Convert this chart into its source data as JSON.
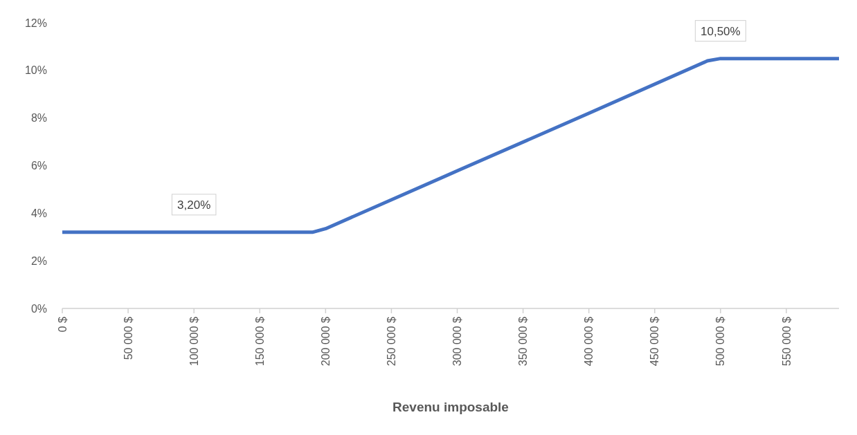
{
  "chart_data": {
    "type": "line",
    "xlabel": "Revenu imposable",
    "x": [
      0,
      190000,
      200000,
      300000,
      400000,
      490000,
      500000,
      590000
    ],
    "series": [
      {
        "color": "#4472c4",
        "values": [
          3.2,
          3.2,
          3.35,
          5.78,
          8.2,
          10.4,
          10.5,
          10.5
        ]
      }
    ],
    "xlim": [
      0,
      590000
    ],
    "xticks": [
      {
        "value": 0,
        "label": "0 $"
      },
      {
        "value": 50000,
        "label": "50 000 $"
      },
      {
        "value": 100000,
        "label": "100 000 $"
      },
      {
        "value": 150000,
        "label": "150 000 $"
      },
      {
        "value": 200000,
        "label": "200 000 $"
      },
      {
        "value": 250000,
        "label": "250 000 $"
      },
      {
        "value": 300000,
        "label": "300 000 $"
      },
      {
        "value": 350000,
        "label": "350 000 $"
      },
      {
        "value": 400000,
        "label": "400 000 $"
      },
      {
        "value": 450000,
        "label": "450 000 $"
      },
      {
        "value": 500000,
        "label": "500 000 $"
      },
      {
        "value": 550000,
        "label": "550 000 $"
      }
    ],
    "ylim": [
      0,
      12
    ],
    "yticks": [
      {
        "value": 0,
        "label": "0%"
      },
      {
        "value": 2,
        "label": "2%"
      },
      {
        "value": 4,
        "label": "4%"
      },
      {
        "value": 6,
        "label": "6%"
      },
      {
        "value": 8,
        "label": "8%"
      },
      {
        "value": 10,
        "label": "10%"
      },
      {
        "value": 12,
        "label": "12%"
      }
    ],
    "annotations": [
      {
        "text": "3,20%",
        "x": 100000,
        "y": 3.2
      },
      {
        "text": "10,50%",
        "x": 500000,
        "y": 10.5
      }
    ],
    "grid": false,
    "marker": "none",
    "line_style": "solid"
  }
}
